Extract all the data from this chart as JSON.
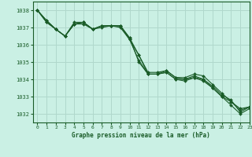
{
  "title": "Graphe pression niveau de la mer (hPa)",
  "bg_color": "#caf0e4",
  "grid_color": "#b0d8cc",
  "line_color": "#1a5c28",
  "xlim": [
    -0.5,
    23
  ],
  "ylim": [
    1031.5,
    1038.5
  ],
  "yticks": [
    1032,
    1033,
    1034,
    1035,
    1036,
    1037,
    1038
  ],
  "xticks": [
    0,
    1,
    2,
    3,
    4,
    5,
    6,
    7,
    8,
    9,
    10,
    11,
    12,
    13,
    14,
    15,
    16,
    17,
    18,
    19,
    20,
    21,
    22,
    23
  ],
  "series": [
    [
      1038.0,
      1037.4,
      1036.9,
      1036.5,
      1037.2,
      1037.2,
      1036.9,
      1037.0,
      1037.1,
      1037.0,
      1036.3,
      1035.4,
      1034.3,
      1034.3,
      1034.4,
      1034.0,
      1034.0,
      1034.1,
      1033.9,
      1033.5,
      1033.0,
      1032.7,
      1032.3,
      1032.4
    ],
    [
      1038.0,
      1037.4,
      1036.9,
      1036.5,
      1037.2,
      1037.3,
      1036.9,
      1037.1,
      1037.1,
      1037.1,
      1036.3,
      1035.1,
      1034.3,
      1034.3,
      1034.5,
      1034.1,
      1034.0,
      1034.2,
      1034.0,
      1033.6,
      1033.1,
      1032.8,
      1032.1,
      1032.4
    ],
    [
      1038.0,
      1037.3,
      1036.9,
      1036.5,
      1037.2,
      1037.3,
      1036.9,
      1037.1,
      1037.1,
      1037.1,
      1036.4,
      1035.0,
      1034.3,
      1034.3,
      1034.4,
      1034.0,
      1033.9,
      1034.1,
      1034.0,
      1033.5,
      1033.0,
      1032.5,
      1032.0,
      1032.3
    ],
    [
      1038.0,
      1037.3,
      1036.9,
      1036.5,
      1037.3,
      1037.3,
      1036.9,
      1037.1,
      1037.1,
      1037.1,
      1036.4,
      1035.4,
      1034.4,
      1034.4,
      1034.5,
      1034.1,
      1034.1,
      1034.3,
      1034.2,
      1033.7,
      1033.2,
      1032.7,
      1032.2,
      1032.4
    ]
  ]
}
